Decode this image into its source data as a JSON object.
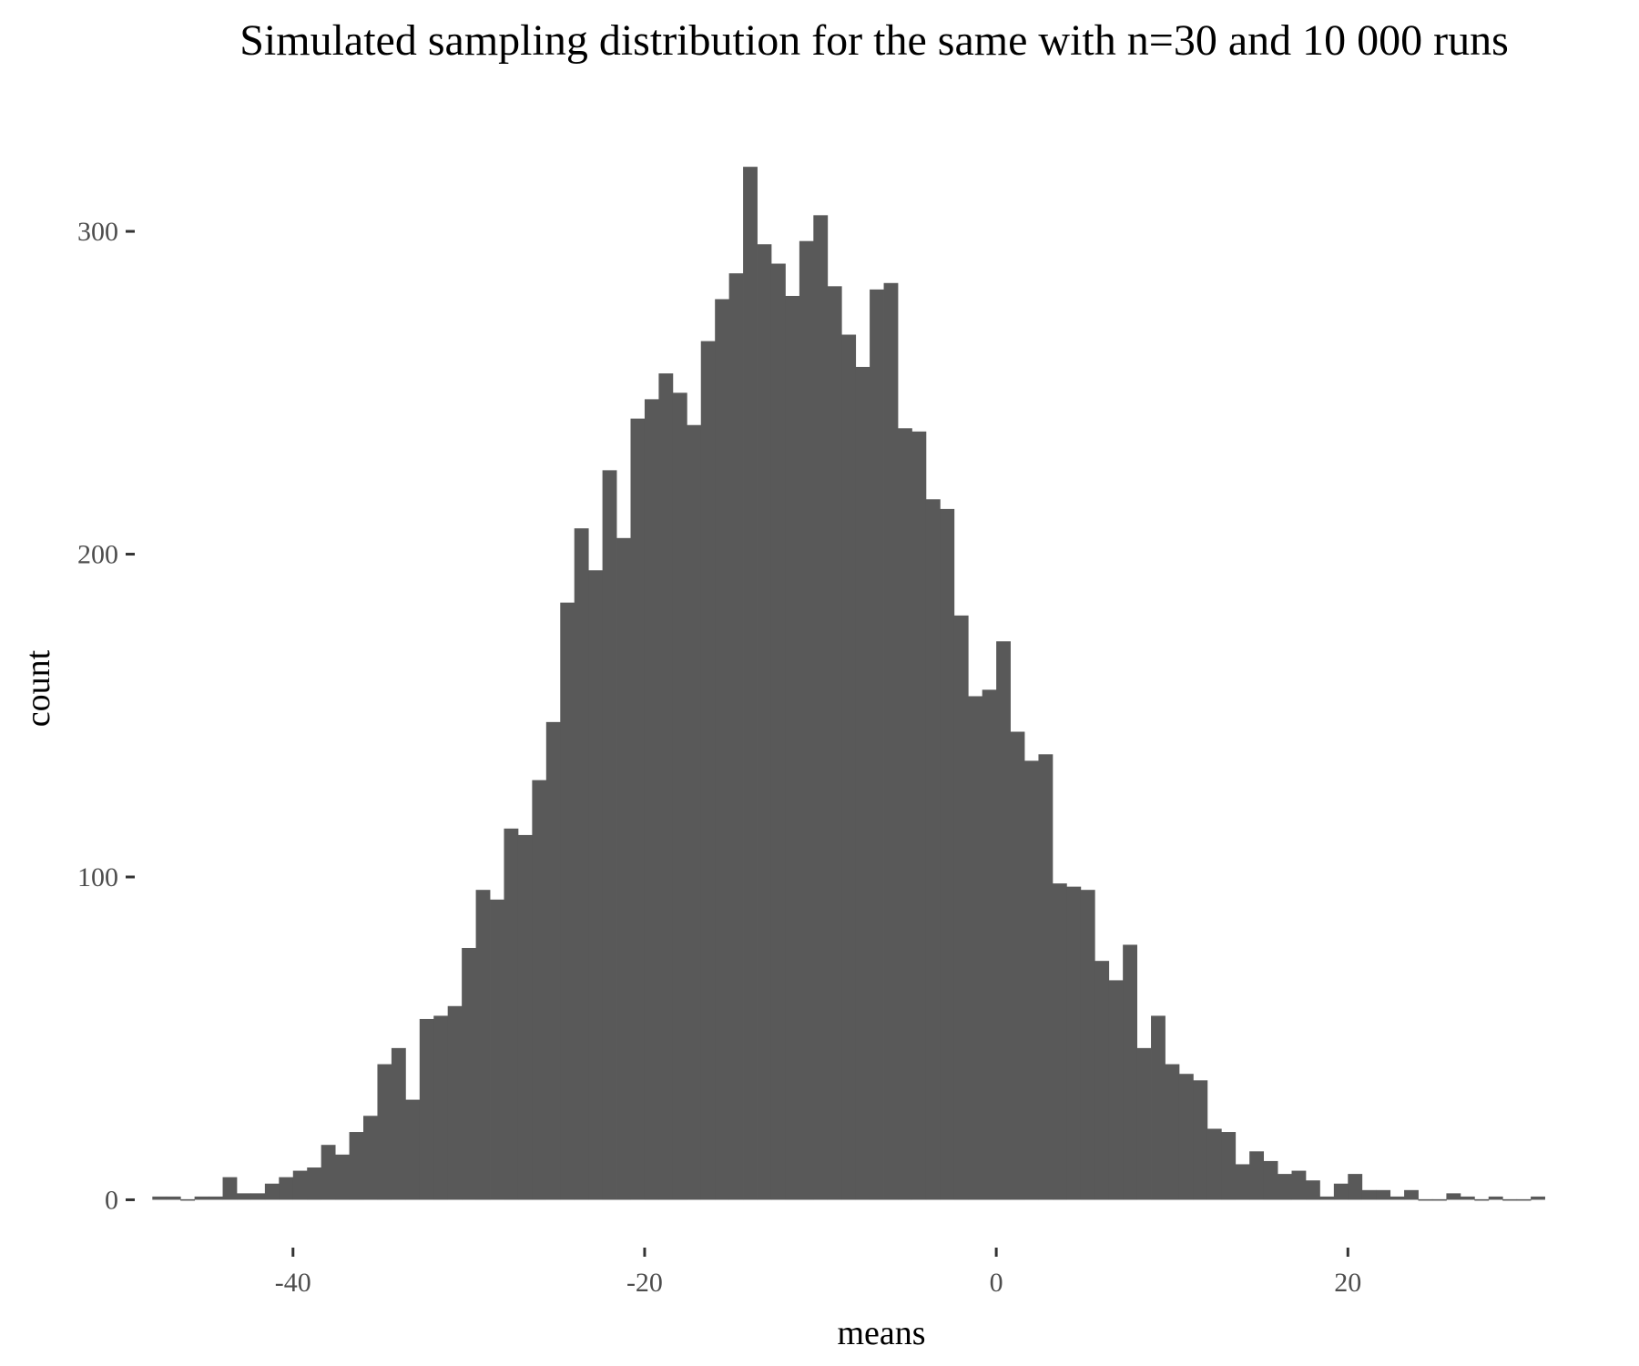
{
  "chart_data": {
    "type": "bar",
    "title": "Simulated sampling distribution for the same  with n=30 and 10 000 runs",
    "xlabel": "means",
    "ylabel": "count",
    "bin_width": 0.8,
    "xlim": [
      -49,
      32
    ],
    "ylim": [
      -12,
      335
    ],
    "x_ticks": [
      -40,
      -20,
      0,
      20
    ],
    "x_tick_labels": [
      "-40",
      "-20",
      "0",
      "20"
    ],
    "y_ticks": [
      0,
      100,
      200,
      300
    ],
    "y_tick_labels": [
      "0",
      "100",
      "200",
      "300"
    ],
    "bar_color": "#595959",
    "grid": false,
    "x": [
      -47.6,
      -46.8,
      -46.0,
      -45.2,
      -44.4,
      -43.6,
      -42.8,
      -42.0,
      -41.2,
      -40.4,
      -39.6,
      -38.8,
      -38.0,
      -37.2,
      -36.4,
      -35.6,
      -34.8,
      -34.0,
      -33.2,
      -32.4,
      -31.6,
      -30.8,
      -30.0,
      -29.2,
      -28.4,
      -27.6,
      -26.8,
      -26.0,
      -25.2,
      -24.4,
      -23.6,
      -22.8,
      -22.0,
      -21.2,
      -20.4,
      -19.6,
      -18.8,
      -18.0,
      -17.2,
      -16.4,
      -15.6,
      -14.8,
      -14.0,
      -13.2,
      -12.4,
      -11.6,
      -10.8,
      -10.0,
      -9.2,
      -8.4,
      -7.6,
      -6.8,
      -6.0,
      -5.2,
      -4.4,
      -3.6,
      -2.8,
      -2.0,
      -1.2,
      -0.4,
      0.4,
      1.2,
      2.0,
      2.8,
      3.6,
      4.4,
      5.2,
      6.0,
      6.8,
      7.6,
      8.4,
      9.2,
      10.0,
      10.8,
      11.6,
      12.4,
      13.2,
      14.0,
      14.8,
      15.6,
      16.4,
      17.2,
      18.0,
      18.8,
      19.6,
      20.4,
      21.2,
      22.0,
      22.8,
      23.6,
      24.4,
      25.2,
      26.0,
      26.8,
      27.6,
      28.4,
      29.2,
      30.0,
      30.8
    ],
    "values": [
      1,
      1,
      0,
      1,
      1,
      7,
      2,
      2,
      5,
      7,
      9,
      10,
      17,
      14,
      21,
      26,
      42,
      47,
      31,
      56,
      57,
      60,
      78,
      96,
      93,
      115,
      113,
      130,
      148,
      185,
      208,
      195,
      226,
      205,
      242,
      248,
      256,
      250,
      240,
      266,
      279,
      287,
      320,
      296,
      290,
      280,
      297,
      305,
      283,
      268,
      258,
      282,
      284,
      239,
      238,
      217,
      214,
      181,
      156,
      158,
      173,
      145,
      136,
      138,
      98,
      97,
      96,
      74,
      68,
      79,
      47,
      57,
      42,
      39,
      37,
      22,
      21,
      11,
      15,
      12,
      8,
      9,
      6,
      1,
      5,
      8,
      3,
      3,
      1,
      3,
      0,
      0,
      2,
      1,
      0,
      1,
      0,
      0,
      1
    ]
  }
}
